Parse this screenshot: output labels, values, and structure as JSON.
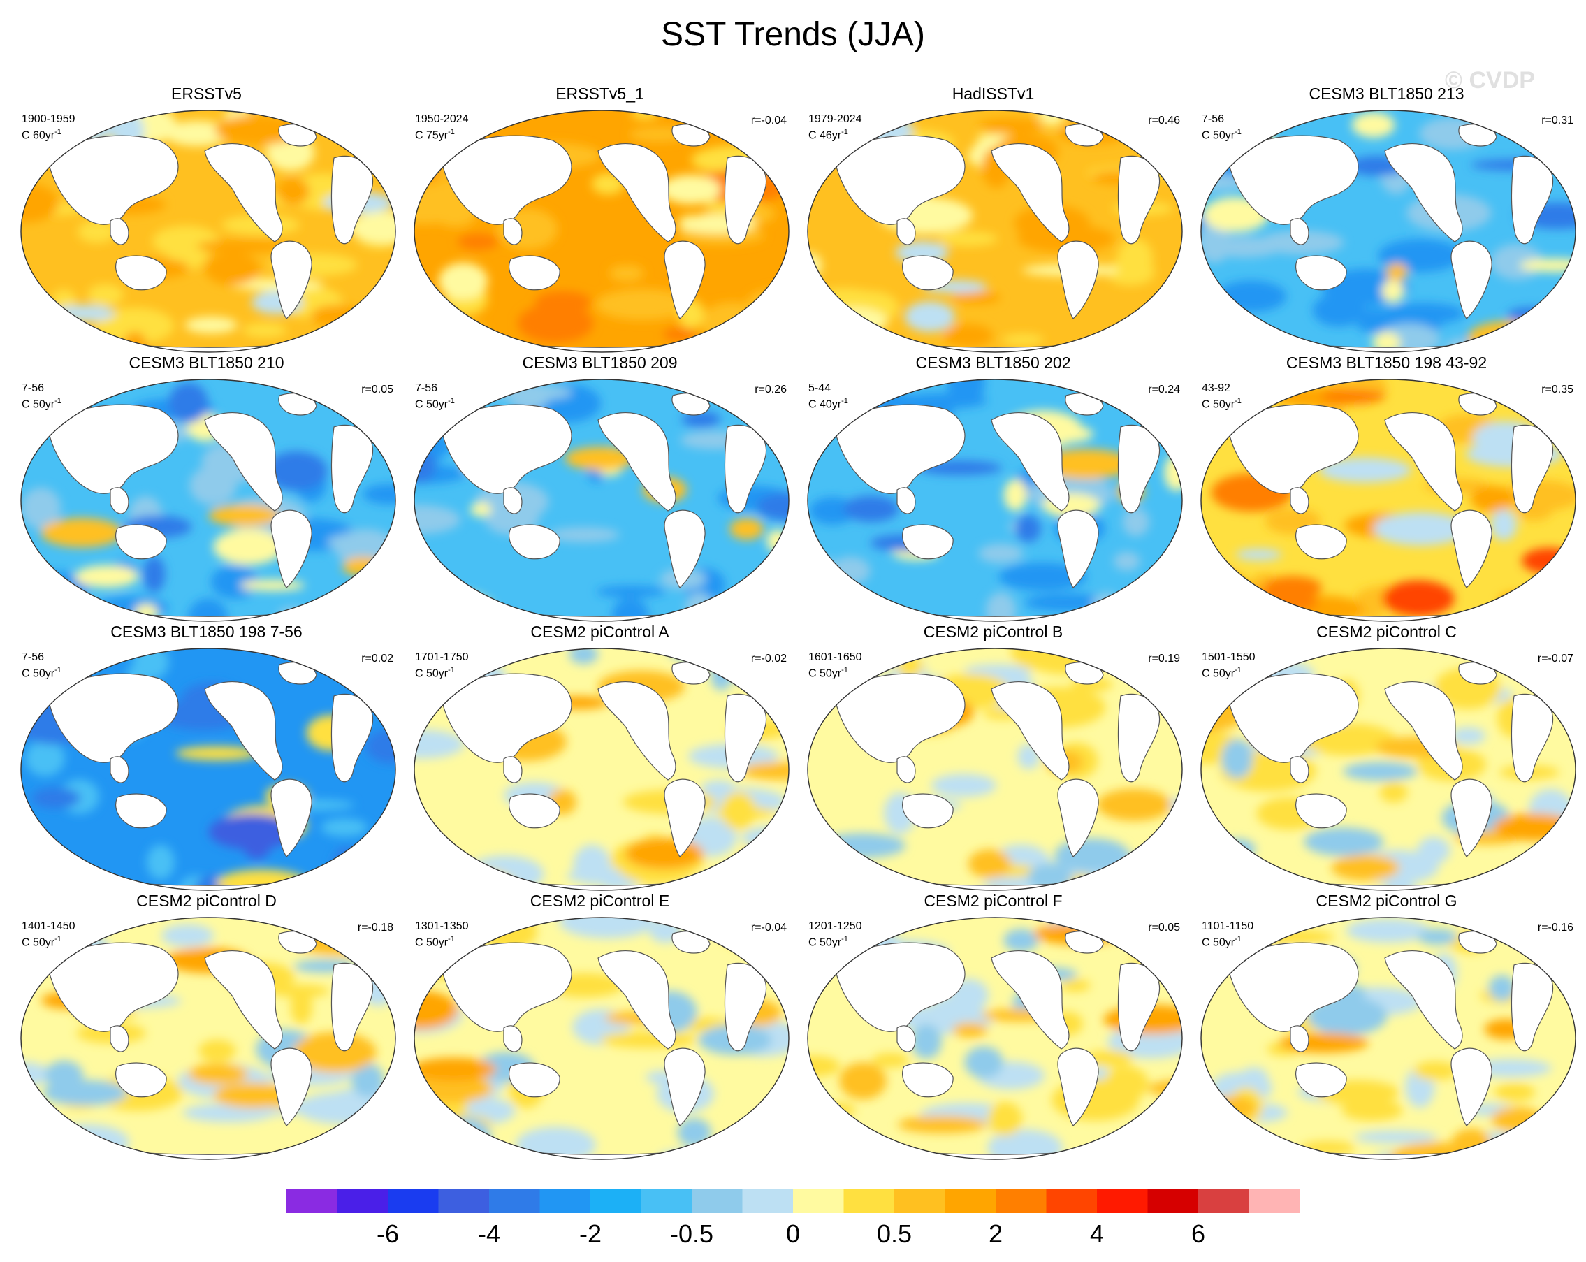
{
  "title": "SST Trends (JJA)",
  "watermark": "© CVDP",
  "panels": [
    {
      "title": "ERSSTv5",
      "period": "1900-1959",
      "trend": "C 60yr",
      "units_sup": "-1",
      "corr": "",
      "palette": "warm"
    },
    {
      "title": "ERSSTv5_1",
      "period": "1950-2024",
      "trend": "C 75yr",
      "units_sup": "-1",
      "corr": "r=-0.04",
      "palette": "warm2"
    },
    {
      "title": "HadISSTv1",
      "period": "1979-2024",
      "trend": "C 46yr",
      "units_sup": "-1",
      "corr": "r=0.46",
      "palette": "warm"
    },
    {
      "title": "CESM3 BLT1850 213",
      "period": "7-56",
      "trend": "C 50yr",
      "units_sup": "-1",
      "corr": "r=0.31",
      "palette": "cool"
    },
    {
      "title": "CESM3 BLT1850 210",
      "period": "7-56",
      "trend": "C 50yr",
      "units_sup": "-1",
      "corr": "r=0.05",
      "palette": "cool"
    },
    {
      "title": "CESM3 BLT1850 209",
      "period": "7-56",
      "trend": "C 50yr",
      "units_sup": "-1",
      "corr": "r=0.26",
      "palette": "cool"
    },
    {
      "title": "CESM3 BLT1850 202",
      "period": "5-44",
      "trend": "C 40yr",
      "units_sup": "-1",
      "corr": "r=0.24",
      "palette": "cool"
    },
    {
      "title": "CESM3 BLT1850 198 43-92",
      "period": "43-92",
      "trend": "C 50yr",
      "units_sup": "-1",
      "corr": "r=0.35",
      "palette": "warm3"
    },
    {
      "title": "CESM3 BLT1850 198 7-56",
      "period": "7-56",
      "trend": "C 50yr",
      "units_sup": "-1",
      "corr": "r=0.02",
      "palette": "cool2"
    },
    {
      "title": "CESM2 piControl A",
      "period": "1701-1750",
      "trend": "C 50yr",
      "units_sup": "-1",
      "corr": "r=-0.02",
      "palette": "mixed"
    },
    {
      "title": "CESM2 piControl B",
      "period": "1601-1650",
      "trend": "C 50yr",
      "units_sup": "-1",
      "corr": "r=0.19",
      "palette": "mixed"
    },
    {
      "title": "CESM2 piControl C",
      "period": "1501-1550",
      "trend": "C 50yr",
      "units_sup": "-1",
      "corr": "r=-0.07",
      "palette": "mixed"
    },
    {
      "title": "CESM2 piControl D",
      "period": "1401-1450",
      "trend": "C 50yr",
      "units_sup": "-1",
      "corr": "r=-0.18",
      "palette": "mixed"
    },
    {
      "title": "CESM2 piControl E",
      "period": "1301-1350",
      "trend": "C 50yr",
      "units_sup": "-1",
      "corr": "r=-0.04",
      "palette": "mixed"
    },
    {
      "title": "CESM2 piControl F",
      "period": "1201-1250",
      "trend": "C 50yr",
      "units_sup": "-1",
      "corr": "r=0.05",
      "palette": "mixed"
    },
    {
      "title": "CESM2 piControl G",
      "period": "1101-1150",
      "trend": "C 50yr",
      "units_sup": "-1",
      "corr": "r=-0.16",
      "palette": "mixed"
    }
  ],
  "colorbar": {
    "colors": [
      "#8a2be2",
      "#4a1fe8",
      "#1a3cf0",
      "#3d5fe0",
      "#2f7be8",
      "#2196f3",
      "#1cb0f6",
      "#48c0f5",
      "#8fcbeb",
      "#bde0f3",
      "#fffaa0",
      "#ffe040",
      "#ffc020",
      "#ffa500",
      "#ff7f00",
      "#ff4500",
      "#ff1a00",
      "#d60000",
      "#d94040",
      "#ffb4b4"
    ],
    "labels": [
      {
        "text": "-6",
        "index": 2
      },
      {
        "text": "-4",
        "index": 4
      },
      {
        "text": "-2",
        "index": 6
      },
      {
        "text": "-0.5",
        "index": 8
      },
      {
        "text": "0",
        "index": 10
      },
      {
        "text": "0.5",
        "index": 12
      },
      {
        "text": "2",
        "index": 14
      },
      {
        "text": "4",
        "index": 16
      },
      {
        "text": "6",
        "index": 18
      }
    ]
  }
}
